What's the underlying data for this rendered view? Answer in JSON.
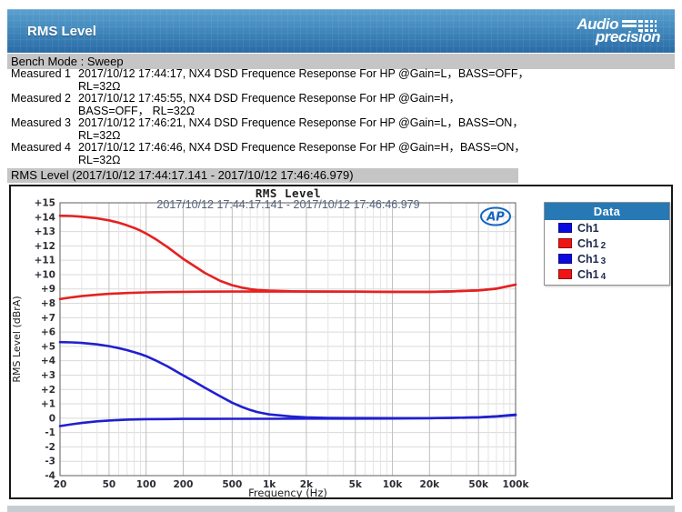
{
  "header": {
    "title": "RMS Level",
    "logo": {
      "line1": "Audio",
      "line2": "precision"
    }
  },
  "bench_bar": {
    "text": "Bench Mode : Sweep"
  },
  "measurements": [
    {
      "label": "Measured 1",
      "line1": "2017/10/12 17:44:17, NX4 DSD Frequence Reseponse For HP @Gain=L，BASS=OFF，",
      "line2": "RL=32Ω"
    },
    {
      "label": "Measured 2",
      "line1": "2017/10/12 17:45:55, NX4 DSD Frequence Reseponse For HP @Gain=H，",
      "line2": "BASS=OFF， RL=32Ω"
    },
    {
      "label": "Measured 3",
      "line1": "2017/10/12 17:46:21, NX4 DSD Frequence Reseponse For HP @Gain=L，BASS=ON，",
      "line2": "RL=32Ω"
    },
    {
      "label": "Measured 4",
      "line1": "2017/10/12 17:46:46, NX4 DSD Frequence Reseponse For HP @Gain=H，BASS=ON，",
      "line2": "RL=32Ω"
    }
  ],
  "section_bar": {
    "text": "RMS Level (2017/10/12 17:44:17.141 - 2017/10/12 17:46:46.979)"
  },
  "colors": {
    "legend_header_bg": "#2779b5",
    "curve_blue": "#2020cf",
    "curve_red": "#e42222",
    "ap_logo_blue": "#1565c0",
    "banner_blue": "#3d84b9"
  },
  "chart_data": {
    "type": "line",
    "title": "RMS Level",
    "subtitle": "2017/10/12 17:44:17.141 - 2017/10/12 17:46:46.979",
    "xlabel": "Frequency (Hz)",
    "ylabel": "RMS Level (dBrA)",
    "watermark": "AP",
    "x_scale": "log",
    "xlim": [
      20,
      100000
    ],
    "ylim": [
      -4,
      15
    ],
    "y_tick_step": 1,
    "grid": true,
    "x_ticks": [
      {
        "v": 20,
        "label": "20"
      },
      {
        "v": 50,
        "label": "50"
      },
      {
        "v": 100,
        "label": "100"
      },
      {
        "v": 200,
        "label": "200"
      },
      {
        "v": 500,
        "label": "500"
      },
      {
        "v": 1000,
        "label": "1k"
      },
      {
        "v": 2000,
        "label": "2k"
      },
      {
        "v": 5000,
        "label": "5k"
      },
      {
        "v": 10000,
        "label": "10k"
      },
      {
        "v": 20000,
        "label": "20k"
      },
      {
        "v": 50000,
        "label": "50k"
      },
      {
        "v": 100000,
        "label": "100k"
      }
    ],
    "legend": {
      "title": "Data",
      "position": "right",
      "entries": [
        {
          "label": "Ch1",
          "sub": "",
          "color": "#0b0bdf"
        },
        {
          "label": "Ch1",
          "sub": "2",
          "color": "#ef1515"
        },
        {
          "label": "Ch1",
          "sub": "3",
          "color": "#0b0bdf"
        },
        {
          "label": "Ch1",
          "sub": "4",
          "color": "#ef1515"
        }
      ]
    },
    "series": [
      {
        "name": "Ch1",
        "color": "#2020cf",
        "points": [
          [
            20,
            -0.55
          ],
          [
            25,
            -0.42
          ],
          [
            30,
            -0.33
          ],
          [
            40,
            -0.22
          ],
          [
            50,
            -0.16
          ],
          [
            70,
            -0.1
          ],
          [
            100,
            -0.07
          ],
          [
            150,
            -0.06
          ],
          [
            200,
            -0.05
          ],
          [
            300,
            -0.05
          ],
          [
            500,
            -0.04
          ],
          [
            1000,
            -0.04
          ],
          [
            2000,
            -0.03
          ],
          [
            5000,
            -0.03
          ],
          [
            10000,
            -0.02
          ],
          [
            20000,
            0
          ],
          [
            30000,
            0.02
          ],
          [
            50000,
            0.06
          ],
          [
            70000,
            0.12
          ],
          [
            100000,
            0.22
          ]
        ]
      },
      {
        "name": "Ch1 2",
        "color": "#e42222",
        "points": [
          [
            20,
            8.3
          ],
          [
            25,
            8.42
          ],
          [
            30,
            8.5
          ],
          [
            40,
            8.6
          ],
          [
            50,
            8.66
          ],
          [
            70,
            8.72
          ],
          [
            100,
            8.76
          ],
          [
            150,
            8.79
          ],
          [
            200,
            8.8
          ],
          [
            300,
            8.81
          ],
          [
            500,
            8.82
          ],
          [
            1000,
            8.82
          ],
          [
            2000,
            8.82
          ],
          [
            5000,
            8.81
          ],
          [
            10000,
            8.8
          ],
          [
            20000,
            8.8
          ],
          [
            30000,
            8.83
          ],
          [
            50000,
            8.9
          ],
          [
            70000,
            9.02
          ],
          [
            100000,
            9.3
          ]
        ]
      },
      {
        "name": "Ch1 3",
        "color": "#2020cf",
        "points": [
          [
            20,
            5.3
          ],
          [
            25,
            5.28
          ],
          [
            30,
            5.24
          ],
          [
            40,
            5.14
          ],
          [
            50,
            5.02
          ],
          [
            60,
            4.88
          ],
          [
            70,
            4.74
          ],
          [
            80,
            4.6
          ],
          [
            90,
            4.46
          ],
          [
            100,
            4.32
          ],
          [
            120,
            4.02
          ],
          [
            150,
            3.6
          ],
          [
            200,
            2.98
          ],
          [
            250,
            2.52
          ],
          [
            300,
            2.12
          ],
          [
            400,
            1.52
          ],
          [
            500,
            1.08
          ],
          [
            600,
            0.78
          ],
          [
            700,
            0.57
          ],
          [
            800,
            0.43
          ],
          [
            1000,
            0.26
          ],
          [
            1500,
            0.12
          ],
          [
            2000,
            0.06
          ],
          [
            3000,
            0.02
          ],
          [
            5000,
            0.01
          ],
          [
            10000,
            0
          ],
          [
            20000,
            0
          ],
          [
            30000,
            0.02
          ],
          [
            50000,
            0.06
          ],
          [
            70000,
            0.13
          ],
          [
            100000,
            0.25
          ]
        ]
      },
      {
        "name": "Ch1 4",
        "color": "#e42222",
        "points": [
          [
            20,
            14.1
          ],
          [
            25,
            14.08
          ],
          [
            30,
            14.03
          ],
          [
            40,
            13.92
          ],
          [
            50,
            13.78
          ],
          [
            60,
            13.61
          ],
          [
            70,
            13.43
          ],
          [
            80,
            13.25
          ],
          [
            90,
            13.06
          ],
          [
            100,
            12.86
          ],
          [
            120,
            12.46
          ],
          [
            150,
            11.9
          ],
          [
            200,
            11.1
          ],
          [
            250,
            10.56
          ],
          [
            300,
            10.12
          ],
          [
            400,
            9.56
          ],
          [
            500,
            9.26
          ],
          [
            600,
            9.09
          ],
          [
            700,
            8.99
          ],
          [
            800,
            8.93
          ],
          [
            1000,
            8.88
          ],
          [
            1500,
            8.84
          ],
          [
            2000,
            8.82
          ],
          [
            5000,
            8.81
          ],
          [
            10000,
            8.8
          ],
          [
            20000,
            8.8
          ],
          [
            30000,
            8.83
          ],
          [
            50000,
            8.9
          ],
          [
            70000,
            9.02
          ],
          [
            100000,
            9.3
          ]
        ]
      }
    ]
  }
}
